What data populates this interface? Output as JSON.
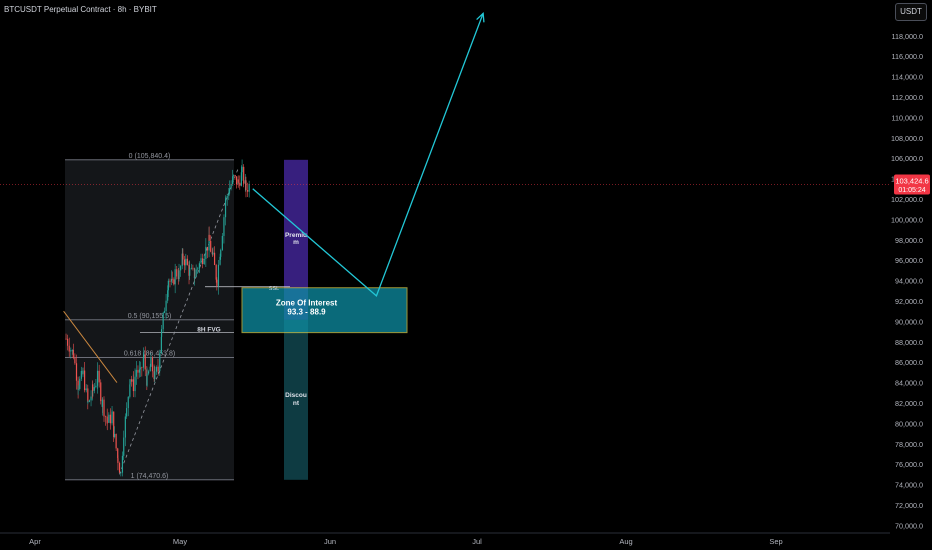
{
  "header": {
    "title": "BTCUSDT Perpetual Contract · 8h · BYBIT"
  },
  "currency_button": "USDT",
  "price_tag": {
    "price": "103,424.6",
    "countdown": "01:05:24",
    "value": 103424.6,
    "color": "#f23645"
  },
  "colors": {
    "background": "#000000",
    "up": "#26a69a",
    "down": "#ef5350",
    "arrow": "#22c7d6",
    "premium": "#4a2aa8",
    "discount": "#114a52",
    "zone": "#0e8ea3",
    "zone_border": "#d4c94a",
    "trendline": "#c9873f",
    "fib": "#787b86"
  },
  "chart_data": {
    "type": "candlestick",
    "title": "BTCUSDT Perpetual Contract · 8h · BYBIT",
    "xlabel": "",
    "ylabel": "",
    "x_ticks": [
      "Apr",
      "May",
      "Jun",
      "Jul",
      "Aug",
      "Sep"
    ],
    "y_ticks": [
      70000,
      72000,
      74000,
      76000,
      78000,
      80000,
      82000,
      84000,
      86000,
      88000,
      90000,
      92000,
      94000,
      96000,
      98000,
      100000,
      102000,
      104000,
      106000,
      108000,
      110000,
      112000,
      114000,
      116000,
      118000
    ],
    "y_tick_labels": [
      "70,000.0",
      "72,000.0",
      "74,000.0",
      "76,000.0",
      "78,000.0",
      "80,000.0",
      "82,000.0",
      "84,000.0",
      "86,000.0",
      "88,000.0",
      "90,000.0",
      "92,000.0",
      "94,000.0",
      "96,000.0",
      "98,000.0",
      "100,000.0",
      "102,000.0",
      "104,000.0",
      "106,000.0",
      "108,000.0",
      "110,000.0",
      "112,000.0",
      "114,000.0",
      "116,000.0",
      "118,000.0"
    ],
    "ylim": [
      69000,
      121000
    ],
    "price_path": [
      [
        -23.5,
        88300
      ],
      [
        -22,
        86800
      ],
      [
        -21,
        83800
      ],
      [
        -20,
        84800
      ],
      [
        -19,
        81900
      ],
      [
        -18,
        83200
      ],
      [
        -17,
        84500
      ],
      [
        -16,
        82000
      ],
      [
        -15,
        80100
      ],
      [
        -14,
        80700
      ],
      [
        -13.5,
        78500
      ],
      [
        -12.8,
        76500
      ],
      [
        -12.2,
        75000
      ],
      [
        -11.6,
        79300
      ],
      [
        -11,
        81200
      ],
      [
        -10.3,
        84600
      ],
      [
        -9.6,
        83700
      ],
      [
        -9,
        85300
      ],
      [
        -8.2,
        84800
      ],
      [
        -7.5,
        86400
      ],
      [
        -6.8,
        84200
      ],
      [
        -6,
        85800
      ],
      [
        -5.2,
        84500
      ],
      [
        -4.5,
        85700
      ],
      [
        -3.8,
        88900
      ],
      [
        -3.2,
        91400
      ],
      [
        -2.4,
        94200
      ],
      [
        -1.6,
        93500
      ],
      [
        -1,
        94800
      ],
      [
        -0.2,
        94600
      ],
      [
        0.6,
        96300
      ],
      [
        1.2,
        95800
      ],
      [
        2,
        94800
      ],
      [
        3,
        94600
      ],
      [
        4,
        95600
      ],
      [
        5,
        96700
      ],
      [
        6,
        97800
      ],
      [
        6.8,
        96100
      ],
      [
        7.6,
        94100
      ],
      [
        8.4,
        97500
      ],
      [
        9.4,
        101800
      ],
      [
        10.2,
        103100
      ],
      [
        11,
        104000
      ],
      [
        12,
        103600
      ],
      [
        12.8,
        104500
      ],
      [
        13.6,
        103000
      ],
      [
        14.4,
        103424.6
      ]
    ],
    "projection": [
      {
        "x": 15,
        "y": 103000
      },
      {
        "x": 40.5,
        "y": 92500
      },
      {
        "x": 62.5,
        "y": 120200
      }
    ],
    "fib_levels": [
      {
        "label": "0 (105,840.4)",
        "value": 105840.4
      },
      {
        "label": "0.5 (90,155.5)",
        "value": 90155.5
      },
      {
        "label": "0.618 (86,453.8)",
        "value": 86453.8
      },
      {
        "label": "1 (74,470.6)",
        "value": 74470.6
      }
    ],
    "zone_of_interest": {
      "label": "Zone Of Interest",
      "range_label": "93.3 - 88.9",
      "top": 93300,
      "bottom": 88900
    },
    "premium_discount": {
      "premium_label": "Premiu m",
      "discount_label": "Discou nt",
      "top": 105840.4,
      "mid": 90155.5,
      "bottom": 74470.6
    },
    "annotations": {
      "fvg": "8H FVG",
      "ssl": "SSL",
      "ssl_level": 93200,
      "fvg_level": 89300
    },
    "trendline": [
      [
        -24,
        91000
      ],
      [
        -13,
        84000
      ]
    ],
    "diag_line": [
      [
        -12.5,
        75000
      ],
      [
        12,
        105000
      ]
    ]
  }
}
